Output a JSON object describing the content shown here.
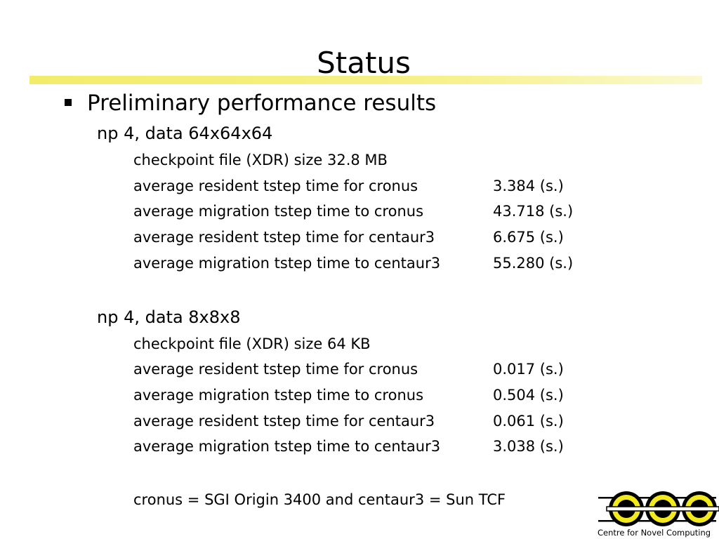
{
  "slide": {
    "title": "Status",
    "bullet": "Preliminary performance results",
    "sections": [
      {
        "heading": "np 4, data 64x64x64",
        "checkpoint": "checkpoint file (XDR) size 32.8 MB",
        "rows": [
          {
            "label": "average resident tstep time for cronus",
            "value": "3.384 (s.)"
          },
          {
            "label": "average migration tstep time to cronus",
            "value": "43.718 (s.)"
          },
          {
            "label": "average resident tstep time for centaur3",
            "value": "6.675 (s.)"
          },
          {
            "label": "average migration tstep time to centaur3",
            "value": "55.280 (s.)"
          }
        ]
      },
      {
        "heading": "np 4, data 8x8x8",
        "checkpoint": "checkpoint file (XDR) size 64 KB",
        "rows": [
          {
            "label": "average resident tstep time for cronus",
            "value": "0.017 (s.)"
          },
          {
            "label": "average migration tstep time to cronus",
            "value": "0.504 (s.)"
          },
          {
            "label": "average resident tstep time for centaur3",
            "value": "0.061 (s.)"
          },
          {
            "label": "average migration tstep time to centaur3",
            "value": "3.038 (s.)"
          }
        ]
      }
    ],
    "footnote": "cronus = SGI Origin 3400 and centaur3 = Sun TCF",
    "logo": {
      "caption": "Centre for Novel Computing",
      "accent_color": "#f2ea1c",
      "rule_color": "#f3ec6a"
    }
  }
}
